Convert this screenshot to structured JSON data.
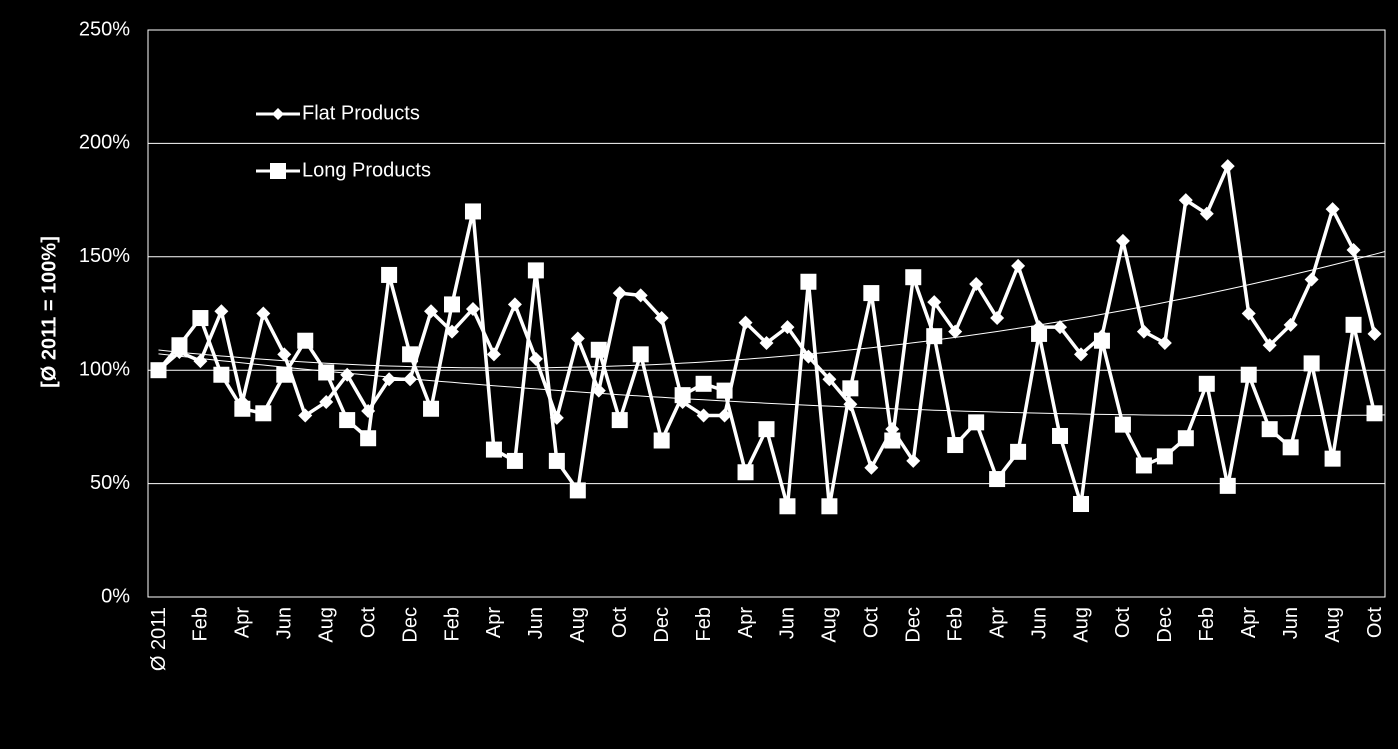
{
  "chart_data": {
    "type": "line",
    "y_label": "[Ø 2011 = 100%]",
    "categories": [
      "Ø 2011",
      null,
      "Feb",
      null,
      "Apr",
      null,
      "Jun",
      null,
      "Aug",
      null,
      "Oct",
      null,
      "Dec",
      null,
      "Feb",
      null,
      "Apr",
      null,
      "Jun",
      null,
      "Aug",
      null,
      "Oct",
      null,
      "Dec",
      null,
      "Feb",
      null,
      "Apr",
      null,
      "Jun",
      null,
      "Aug",
      null,
      "Oct",
      null,
      "Dec",
      null,
      "Feb",
      null,
      "Apr",
      null,
      "Jun",
      null,
      "Aug",
      null,
      "Oct",
      null,
      "Dec",
      null,
      "Feb",
      null,
      "Apr",
      null,
      "Jun",
      null,
      "Aug",
      null,
      "Oct"
    ],
    "series": [
      {
        "name": "Flat Products",
        "color": "#ffffff",
        "marker": "diamond",
        "values": [
          100,
          108,
          104,
          126,
          86,
          125,
          107,
          80,
          86,
          98,
          82,
          96,
          96,
          126,
          117,
          127,
          107,
          129,
          105,
          79,
          114,
          91,
          134,
          133,
          123,
          86,
          80,
          80,
          121,
          112,
          119,
          106,
          96,
          85,
          57,
          74,
          60,
          130,
          117,
          138,
          123,
          146,
          119,
          119,
          107,
          115,
          157,
          117,
          112,
          175,
          169,
          190,
          125,
          111,
          120,
          140,
          171,
          153,
          116
        ]
      },
      {
        "name": "Long Products",
        "color": "#ffffff",
        "marker": "square",
        "values": [
          100,
          111,
          123,
          98,
          83,
          81,
          98,
          113,
          99,
          78,
          70,
          142,
          107,
          83,
          129,
          170,
          65,
          60,
          144,
          60,
          47,
          109,
          78,
          107,
          69,
          89,
          94,
          91,
          55,
          74,
          40,
          139,
          40,
          92,
          134,
          69,
          141,
          115,
          67,
          77,
          52,
          64,
          116,
          71,
          41,
          113,
          76,
          58,
          62,
          70,
          94,
          49,
          98,
          74,
          66,
          103,
          61,
          120,
          81
        ]
      }
    ],
    "ylim": [
      0,
      250
    ],
    "yticks": [
      {
        "value": 0,
        "label": "0%"
      },
      {
        "value": 50,
        "label": "50%"
      },
      {
        "value": 100,
        "label": "100%"
      },
      {
        "value": 150,
        "label": "150%"
      },
      {
        "value": 200,
        "label": "200%"
      },
      {
        "value": 250,
        "label": "250%"
      }
    ],
    "grid": true,
    "trendline": "polynomial",
    "legend": "upper left"
  }
}
